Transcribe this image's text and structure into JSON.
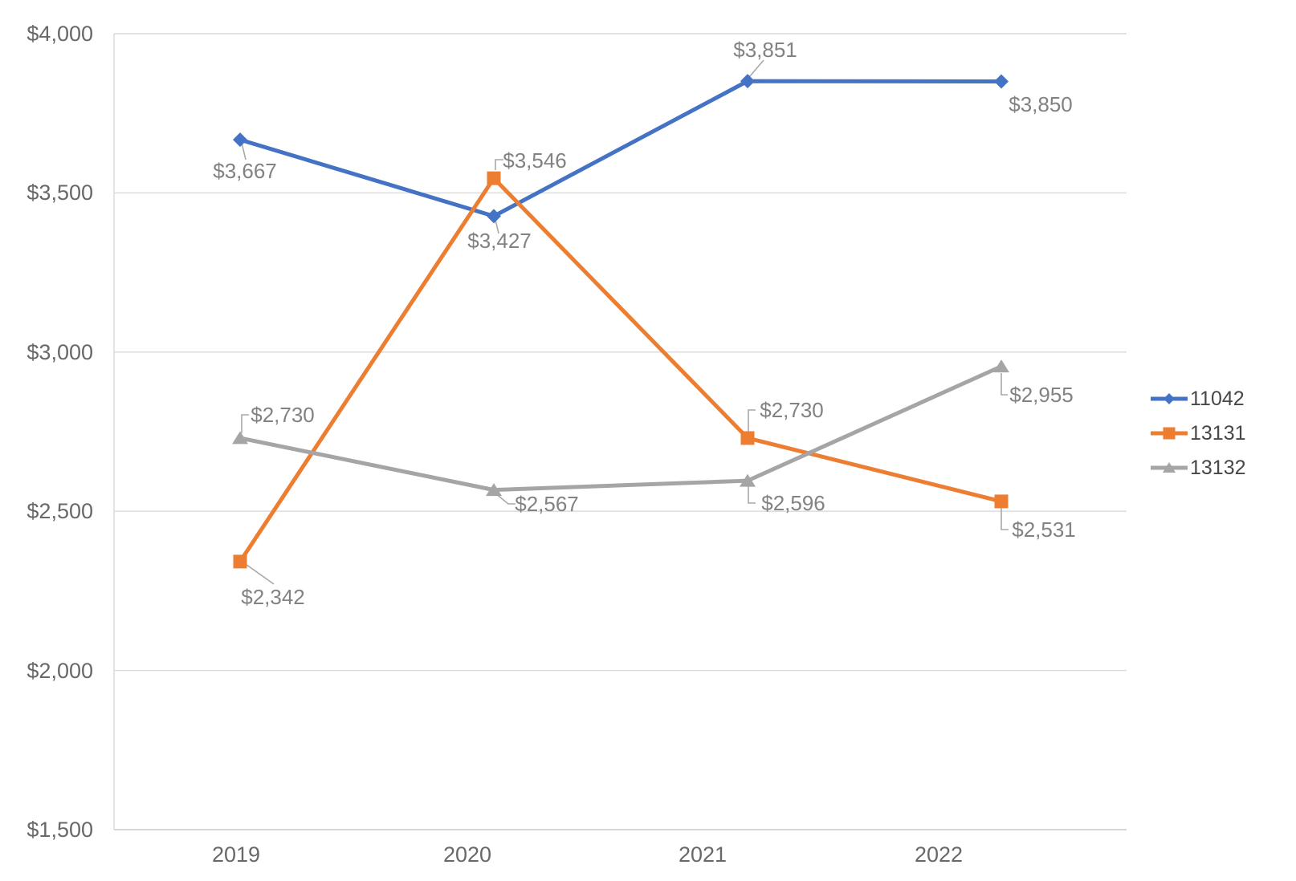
{
  "chart_data": {
    "type": "line",
    "title": "",
    "categories": [
      "2019",
      "2020",
      "2021",
      "2022"
    ],
    "series": [
      {
        "name": "11042",
        "color": "#4472C4",
        "marker": "diamond",
        "values": [
          3667,
          3427,
          3851,
          3850
        ],
        "data_labels": [
          "$3,667",
          "$3,427",
          "$3,851",
          "$3,850"
        ]
      },
      {
        "name": "13131",
        "color": "#ED7D31",
        "marker": "square",
        "values": [
          2342,
          3546,
          2730,
          2531
        ],
        "data_labels": [
          "$2,342",
          "$3,546",
          "$2,730",
          "$2,531"
        ]
      },
      {
        "name": "13132",
        "color": "#A5A5A5",
        "marker": "triangle",
        "values": [
          2730,
          2567,
          2596,
          2955
        ],
        "data_labels": [
          "$2,730",
          "$2,567",
          "$2,596",
          "$2,955"
        ]
      }
    ],
    "y_axis": {
      "min": 1500,
      "max": 4000,
      "step": 500,
      "ticks": [
        "$4,000",
        "$3,500",
        "$3,000",
        "$2,500",
        "$2,000",
        "$1,500"
      ],
      "format": "$#,##0"
    },
    "x_axis": {
      "ticks": [
        "2019",
        "2020",
        "2021",
        "2022"
      ]
    },
    "legend": {
      "position": "right",
      "entries": [
        "11042",
        "13131",
        "13132"
      ]
    },
    "grid": true,
    "colors": {
      "background": "#FFFFFF",
      "gridline": "#D9D9D9",
      "axis_line": "#C8C8C8",
      "leader_line": "#A8A8A8",
      "axis_text": "#686868",
      "data_label_text": "#828282",
      "legend_text": "#474747",
      "series_blue": "#4472C4",
      "series_orange": "#ED7D31",
      "series_gray": "#A5A5A5"
    }
  }
}
